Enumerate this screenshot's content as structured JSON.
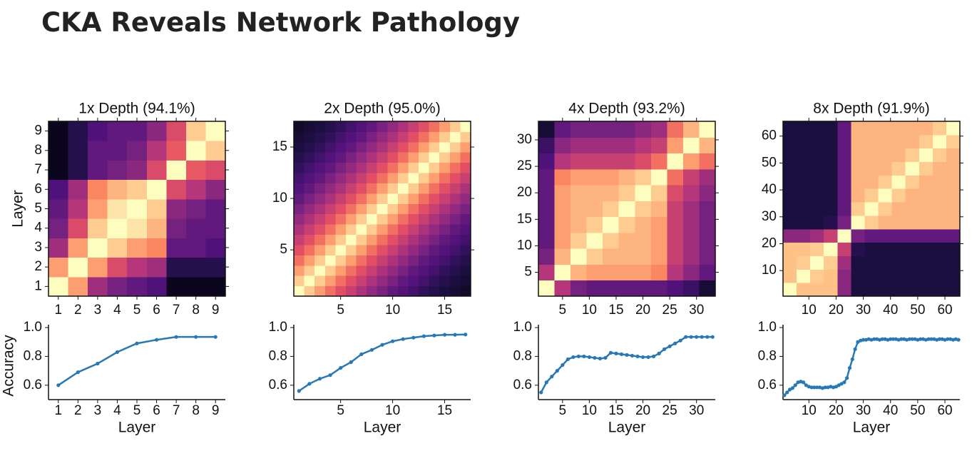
{
  "header": {
    "title": "CKA Reveals Network Pathology"
  },
  "chart_data": [
    {
      "type": "heatmap",
      "title": "1x Depth (94.1%)",
      "ylabel": "Layer",
      "colormap": "magma",
      "clim": [
        0,
        1
      ],
      "bins": [
        0.5,
        1.5,
        2.5,
        3.5,
        4.5,
        5.5,
        6.5,
        7.5,
        8.5,
        9.5
      ],
      "xlim": [
        0.5,
        9.5
      ],
      "ylim": [
        0.5,
        9.5
      ],
      "xticks": [
        1,
        2,
        3,
        4,
        5,
        6,
        7,
        8,
        9
      ],
      "yticks": [
        1,
        2,
        3,
        4,
        5,
        6,
        7,
        8,
        9
      ],
      "values": [
        [
          1,
          0.8,
          0.45,
          0.35,
          0.3,
          0.25,
          0.05,
          0.05,
          0.05
        ],
        [
          0.8,
          1,
          0.8,
          0.6,
          0.5,
          0.45,
          0.15,
          0.15,
          0.15
        ],
        [
          0.45,
          0.8,
          1,
          0.9,
          0.8,
          0.75,
          0.3,
          0.3,
          0.25
        ],
        [
          0.35,
          0.6,
          0.9,
          1,
          0.95,
          0.85,
          0.35,
          0.3,
          0.3
        ],
        [
          0.3,
          0.5,
          0.8,
          0.95,
          1,
          0.9,
          0.4,
          0.35,
          0.3
        ],
        [
          0.25,
          0.45,
          0.75,
          0.85,
          0.9,
          1,
          0.6,
          0.5,
          0.4
        ],
        [
          0.05,
          0.15,
          0.3,
          0.35,
          0.4,
          0.6,
          1,
          0.65,
          0.6
        ],
        [
          0.05,
          0.15,
          0.3,
          0.3,
          0.35,
          0.5,
          0.65,
          1,
          0.9
        ],
        [
          0.05,
          0.15,
          0.25,
          0.3,
          0.3,
          0.4,
          0.6,
          0.9,
          1
        ]
      ]
    },
    {
      "type": "heatmap",
      "title": "2x Depth (95.0%)",
      "colormap": "magma",
      "clim": [
        0,
        1
      ],
      "bins": [
        0.5,
        1.5,
        2.5,
        3.5,
        4.5,
        5.5,
        6.5,
        7.5,
        8.5,
        9.5,
        10.5,
        11.5,
        12.5,
        13.5,
        14.5,
        15.5,
        16.5,
        17.5
      ],
      "xlim": [
        0.5,
        17.5
      ],
      "ylim": [
        0.5,
        17.5
      ],
      "xticks": [
        5,
        10,
        15
      ],
      "yticks": [
        5,
        10,
        15
      ],
      "values": [
        [
          1,
          0.9,
          0.8,
          0.7,
          0.62,
          0.55,
          0.48,
          0.42,
          0.36,
          0.3,
          0.26,
          0.22,
          0.18,
          0.15,
          0.12,
          0.1,
          0.08
        ],
        [
          0.9,
          1,
          0.9,
          0.8,
          0.7,
          0.62,
          0.55,
          0.48,
          0.42,
          0.36,
          0.3,
          0.26,
          0.22,
          0.18,
          0.15,
          0.12,
          0.1
        ],
        [
          0.8,
          0.9,
          1,
          0.9,
          0.8,
          0.7,
          0.62,
          0.55,
          0.48,
          0.42,
          0.36,
          0.3,
          0.26,
          0.22,
          0.18,
          0.15,
          0.12
        ],
        [
          0.7,
          0.8,
          0.9,
          1,
          0.9,
          0.8,
          0.7,
          0.62,
          0.55,
          0.48,
          0.42,
          0.36,
          0.3,
          0.26,
          0.22,
          0.18,
          0.15
        ],
        [
          0.62,
          0.7,
          0.8,
          0.9,
          1,
          0.9,
          0.8,
          0.7,
          0.62,
          0.55,
          0.48,
          0.42,
          0.36,
          0.3,
          0.26,
          0.22,
          0.18
        ],
        [
          0.55,
          0.62,
          0.7,
          0.8,
          0.9,
          1,
          0.9,
          0.8,
          0.7,
          0.62,
          0.55,
          0.48,
          0.42,
          0.36,
          0.3,
          0.26,
          0.22
        ],
        [
          0.48,
          0.55,
          0.62,
          0.7,
          0.8,
          0.9,
          1,
          0.9,
          0.8,
          0.7,
          0.62,
          0.55,
          0.48,
          0.42,
          0.36,
          0.3,
          0.26
        ],
        [
          0.42,
          0.48,
          0.55,
          0.62,
          0.7,
          0.8,
          0.9,
          1,
          0.9,
          0.8,
          0.7,
          0.62,
          0.55,
          0.48,
          0.42,
          0.36,
          0.3
        ],
        [
          0.36,
          0.42,
          0.48,
          0.55,
          0.62,
          0.7,
          0.8,
          0.9,
          1,
          0.9,
          0.8,
          0.7,
          0.62,
          0.55,
          0.48,
          0.42,
          0.36
        ],
        [
          0.3,
          0.36,
          0.42,
          0.48,
          0.55,
          0.62,
          0.7,
          0.8,
          0.9,
          1,
          0.9,
          0.8,
          0.7,
          0.62,
          0.55,
          0.48,
          0.42
        ],
        [
          0.26,
          0.3,
          0.36,
          0.42,
          0.48,
          0.55,
          0.62,
          0.7,
          0.8,
          0.9,
          1,
          0.9,
          0.8,
          0.7,
          0.62,
          0.55,
          0.48
        ],
        [
          0.22,
          0.26,
          0.3,
          0.36,
          0.42,
          0.48,
          0.55,
          0.62,
          0.7,
          0.8,
          0.9,
          1,
          0.9,
          0.8,
          0.7,
          0.62,
          0.55
        ],
        [
          0.18,
          0.22,
          0.26,
          0.3,
          0.36,
          0.42,
          0.48,
          0.55,
          0.62,
          0.7,
          0.8,
          0.9,
          1,
          0.9,
          0.8,
          0.7,
          0.62
        ],
        [
          0.15,
          0.18,
          0.22,
          0.26,
          0.3,
          0.36,
          0.42,
          0.48,
          0.55,
          0.62,
          0.7,
          0.8,
          0.9,
          1,
          0.9,
          0.8,
          0.7
        ],
        [
          0.12,
          0.15,
          0.18,
          0.22,
          0.26,
          0.3,
          0.36,
          0.42,
          0.48,
          0.55,
          0.62,
          0.7,
          0.8,
          0.9,
          1,
          0.9,
          0.8
        ],
        [
          0.1,
          0.12,
          0.15,
          0.18,
          0.22,
          0.26,
          0.3,
          0.36,
          0.42,
          0.48,
          0.55,
          0.62,
          0.7,
          0.8,
          0.9,
          1,
          0.9
        ],
        [
          0.08,
          0.1,
          0.12,
          0.15,
          0.18,
          0.22,
          0.26,
          0.3,
          0.36,
          0.42,
          0.48,
          0.55,
          0.62,
          0.7,
          0.8,
          0.9,
          1
        ]
      ]
    },
    {
      "type": "heatmap",
      "title": "4x Depth (93.2%)",
      "colormap": "magma",
      "clim": [
        0,
        1
      ],
      "bins": [
        0.5,
        3.5,
        6.5,
        9.5,
        12.5,
        15.5,
        18.5,
        21.5,
        24.5,
        27.5,
        30.5,
        33.5
      ],
      "xlim": [
        0.5,
        33.5
      ],
      "ylim": [
        0.5,
        33.5
      ],
      "xticks": [
        5,
        10,
        15,
        20,
        25,
        30
      ],
      "yticks": [
        5,
        10,
        15,
        20,
        25,
        30
      ],
      "values": [
        [
          1,
          0.5,
          0.35,
          0.3,
          0.3,
          0.3,
          0.3,
          0.3,
          0.25,
          0.2,
          0.1
        ],
        [
          0.5,
          1,
          0.85,
          0.8,
          0.8,
          0.8,
          0.8,
          0.75,
          0.5,
          0.4,
          0.3
        ],
        [
          0.35,
          0.85,
          1,
          0.9,
          0.85,
          0.85,
          0.85,
          0.8,
          0.55,
          0.45,
          0.35
        ],
        [
          0.3,
          0.8,
          0.9,
          1,
          0.9,
          0.85,
          0.85,
          0.8,
          0.55,
          0.45,
          0.35
        ],
        [
          0.3,
          0.8,
          0.85,
          0.9,
          1,
          0.9,
          0.85,
          0.8,
          0.55,
          0.45,
          0.35
        ],
        [
          0.3,
          0.8,
          0.85,
          0.85,
          0.9,
          1,
          0.9,
          0.85,
          0.55,
          0.45,
          0.35
        ],
        [
          0.3,
          0.8,
          0.85,
          0.85,
          0.85,
          0.9,
          1,
          0.9,
          0.6,
          0.5,
          0.4
        ],
        [
          0.3,
          0.75,
          0.8,
          0.8,
          0.8,
          0.85,
          0.9,
          1,
          0.7,
          0.55,
          0.45
        ],
        [
          0.25,
          0.5,
          0.55,
          0.55,
          0.55,
          0.55,
          0.6,
          0.7,
          1,
          0.8,
          0.7
        ],
        [
          0.2,
          0.4,
          0.45,
          0.45,
          0.45,
          0.45,
          0.5,
          0.55,
          0.8,
          1,
          0.85
        ],
        [
          0.1,
          0.3,
          0.35,
          0.35,
          0.35,
          0.35,
          0.4,
          0.45,
          0.7,
          0.85,
          1
        ]
      ]
    },
    {
      "type": "heatmap",
      "title": "8x Depth (91.9%)",
      "colormap": "magma",
      "clim": [
        0,
        1
      ],
      "bins": [
        0.5,
        5.5,
        10.5,
        15.5,
        20.5,
        25.5,
        30.5,
        35.5,
        40.5,
        45.5,
        50.5,
        55.5,
        60.5,
        65.5
      ],
      "xlim": [
        0.5,
        65.5
      ],
      "ylim": [
        0.5,
        65.5
      ],
      "xticks": [
        10,
        20,
        30,
        40,
        50,
        60
      ],
      "yticks": [
        10,
        20,
        30,
        40,
        50,
        60
      ],
      "values": [
        [
          1,
          0.88,
          0.88,
          0.88,
          0.4,
          0.12,
          0.12,
          0.12,
          0.12,
          0.12,
          0.12,
          0.12,
          0.12
        ],
        [
          0.88,
          1,
          0.9,
          0.88,
          0.4,
          0.12,
          0.12,
          0.12,
          0.12,
          0.12,
          0.12,
          0.12,
          0.12
        ],
        [
          0.88,
          0.9,
          1,
          0.9,
          0.45,
          0.12,
          0.12,
          0.12,
          0.12,
          0.12,
          0.12,
          0.12,
          0.12
        ],
        [
          0.88,
          0.88,
          0.9,
          1,
          0.55,
          0.15,
          0.12,
          0.12,
          0.12,
          0.12,
          0.12,
          0.12,
          0.12
        ],
        [
          0.4,
          0.4,
          0.45,
          0.55,
          1,
          0.35,
          0.3,
          0.3,
          0.3,
          0.3,
          0.3,
          0.3,
          0.3
        ],
        [
          0.12,
          0.12,
          0.12,
          0.15,
          0.35,
          1,
          0.9,
          0.85,
          0.85,
          0.85,
          0.85,
          0.85,
          0.85
        ],
        [
          0.12,
          0.12,
          0.12,
          0.12,
          0.3,
          0.9,
          1,
          0.9,
          0.85,
          0.85,
          0.85,
          0.85,
          0.85
        ],
        [
          0.12,
          0.12,
          0.12,
          0.12,
          0.3,
          0.85,
          0.9,
          1,
          0.9,
          0.85,
          0.85,
          0.85,
          0.85
        ],
        [
          0.12,
          0.12,
          0.12,
          0.12,
          0.3,
          0.85,
          0.85,
          0.9,
          1,
          0.9,
          0.85,
          0.85,
          0.85
        ],
        [
          0.12,
          0.12,
          0.12,
          0.12,
          0.3,
          0.85,
          0.85,
          0.85,
          0.9,
          1,
          0.9,
          0.85,
          0.85
        ],
        [
          0.12,
          0.12,
          0.12,
          0.12,
          0.3,
          0.85,
          0.85,
          0.85,
          0.85,
          0.9,
          1,
          0.9,
          0.85
        ],
        [
          0.12,
          0.12,
          0.12,
          0.12,
          0.3,
          0.85,
          0.85,
          0.85,
          0.85,
          0.85,
          0.9,
          1,
          0.9
        ],
        [
          0.12,
          0.12,
          0.12,
          0.12,
          0.3,
          0.85,
          0.85,
          0.85,
          0.85,
          0.85,
          0.85,
          0.9,
          1
        ]
      ]
    },
    {
      "type": "line",
      "xlabel": "Layer",
      "ylabel": "Accuracy",
      "color": "#2878b5",
      "xlim": [
        0.5,
        9.5
      ],
      "ylim": [
        0.5,
        1.02
      ],
      "xticks": [
        1,
        2,
        3,
        4,
        5,
        6,
        7,
        8,
        9
      ],
      "yticks": [
        {
          "value": 1,
          "label": "1.0"
        },
        0.8,
        0.6
      ],
      "x": [
        1,
        2,
        3,
        4,
        5,
        6,
        7,
        8,
        9
      ],
      "values": [
        0.6,
        0.69,
        0.75,
        0.83,
        0.89,
        0.915,
        0.935,
        0.935,
        0.935
      ]
    },
    {
      "type": "line",
      "xlabel": "Layer",
      "color": "#2878b5",
      "xlim": [
        0.5,
        17.5
      ],
      "ylim": [
        0.5,
        1.02
      ],
      "xticks": [
        5,
        10,
        15
      ],
      "yticks": [
        {
          "value": 1,
          "label": "1.0"
        },
        0.8,
        0.6
      ],
      "x": [
        1,
        2,
        3,
        4,
        5,
        6,
        7,
        8,
        9,
        10,
        11,
        12,
        13,
        14,
        15,
        16,
        17
      ],
      "values": [
        0.56,
        0.61,
        0.645,
        0.67,
        0.72,
        0.76,
        0.815,
        0.845,
        0.88,
        0.905,
        0.92,
        0.93,
        0.94,
        0.945,
        0.95,
        0.95,
        0.952
      ]
    },
    {
      "type": "line",
      "xlabel": "Layer",
      "color": "#2878b5",
      "xlim": [
        0.5,
        33.5
      ],
      "ylim": [
        0.5,
        1.02
      ],
      "xticks": [
        5,
        10,
        15,
        20,
        25,
        30
      ],
      "yticks": [
        {
          "value": 1,
          "label": "1.0"
        },
        0.8,
        0.6
      ],
      "x": [
        1,
        2,
        3,
        4,
        5,
        6,
        7,
        8,
        9,
        10,
        11,
        12,
        13,
        14,
        15,
        16,
        17,
        18,
        19,
        20,
        21,
        22,
        23,
        24,
        25,
        26,
        27,
        28,
        29,
        30,
        31,
        32,
        33
      ],
      "values": [
        0.55,
        0.62,
        0.66,
        0.7,
        0.74,
        0.78,
        0.795,
        0.8,
        0.8,
        0.795,
        0.79,
        0.785,
        0.79,
        0.825,
        0.82,
        0.815,
        0.81,
        0.805,
        0.8,
        0.795,
        0.795,
        0.8,
        0.82,
        0.85,
        0.87,
        0.89,
        0.91,
        0.935,
        0.935,
        0.935,
        0.935,
        0.935,
        0.935
      ]
    },
    {
      "type": "line",
      "xlabel": "Layer",
      "color": "#2878b5",
      "xlim": [
        0.5,
        65.5
      ],
      "ylim": [
        0.5,
        1.02
      ],
      "xticks": [
        10,
        20,
        30,
        40,
        50,
        60
      ],
      "yticks": [
        {
          "value": 1,
          "label": "1.0"
        },
        0.8,
        0.6
      ],
      "x": [
        1,
        2,
        3,
        4,
        5,
        6,
        7,
        8,
        9,
        10,
        11,
        12,
        13,
        14,
        15,
        16,
        17,
        18,
        19,
        20,
        21,
        22,
        23,
        24,
        25,
        26,
        27,
        28,
        29,
        30,
        31,
        32,
        33,
        34,
        35,
        36,
        37,
        38,
        39,
        40,
        41,
        42,
        43,
        44,
        45,
        46,
        47,
        48,
        49,
        50,
        51,
        52,
        53,
        54,
        55,
        56,
        57,
        58,
        59,
        60,
        61,
        62,
        63,
        64,
        65
      ],
      "values": [
        0.53,
        0.55,
        0.57,
        0.58,
        0.6,
        0.62,
        0.625,
        0.62,
        0.6,
        0.59,
        0.585,
        0.585,
        0.585,
        0.585,
        0.58,
        0.585,
        0.585,
        0.59,
        0.585,
        0.59,
        0.6,
        0.61,
        0.62,
        0.65,
        0.72,
        0.78,
        0.85,
        0.9,
        0.91,
        0.915,
        0.915,
        0.92,
        0.915,
        0.92,
        0.92,
        0.915,
        0.92,
        0.92,
        0.915,
        0.92,
        0.92,
        0.92,
        0.915,
        0.92,
        0.92,
        0.915,
        0.92,
        0.92,
        0.92,
        0.915,
        0.92,
        0.92,
        0.915,
        0.92,
        0.92,
        0.92,
        0.915,
        0.92,
        0.92,
        0.915,
        0.92,
        0.92,
        0.915,
        0.92,
        0.915
      ]
    }
  ]
}
